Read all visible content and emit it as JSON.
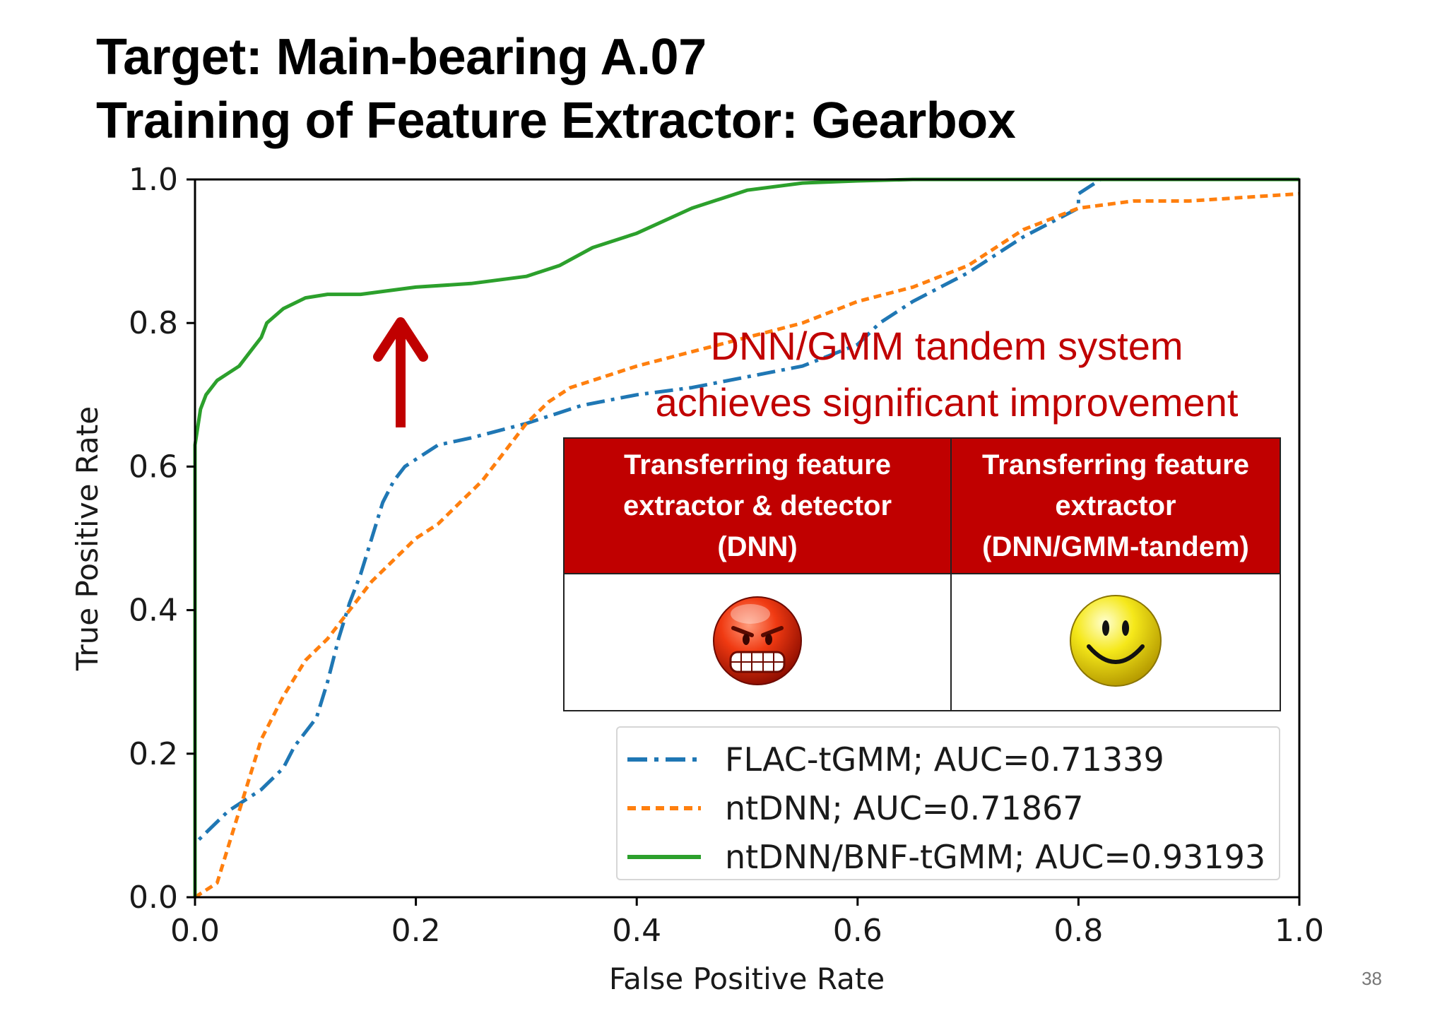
{
  "slide": {
    "title_line1": "Target: Main-bearing A.07",
    "title_line2": "Training of Feature Extractor: Gearbox",
    "callout_line1": "DNN/GMM tandem system",
    "callout_line2": "achieves significant improvement",
    "arrow_color": "#c00000",
    "page_number": "38"
  },
  "comparison_table": {
    "header_color": "#c00000",
    "columns": [
      {
        "heading_lines": [
          "Transferring feature",
          "extractor & detector",
          "(DNN)"
        ],
        "face_icon": "angry-face-icon"
      },
      {
        "heading_lines": [
          "Transferring feature",
          "extractor",
          "(DNN/GMM-tandem)"
        ],
        "face_icon": "smiley-face-icon"
      }
    ]
  },
  "chart_data": {
    "type": "line",
    "xlabel": "False Positive Rate",
    "ylabel": "True Positive Rate",
    "xlim": [
      0,
      1
    ],
    "ylim": [
      0,
      1
    ],
    "xticks": [
      "0.0",
      "0.2",
      "0.4",
      "0.6",
      "0.8",
      "1.0"
    ],
    "yticks": [
      "0.0",
      "0.2",
      "0.4",
      "0.6",
      "0.8",
      "1.0"
    ],
    "grid": false,
    "legend_position": "lower-right",
    "series": [
      {
        "name": "FLAC-tGMM; AUC=0.71339",
        "color": "#1f77b4",
        "linestyle": "dashdot",
        "x": [
          0,
          0,
          0.03,
          0.06,
          0.08,
          0.09,
          0.11,
          0.12,
          0.13,
          0.14,
          0.15,
          0.16,
          0.17,
          0.18,
          0.19,
          0.2,
          0.22,
          0.25,
          0.3,
          0.35,
          0.4,
          0.45,
          0.5,
          0.55,
          0.6,
          0.62,
          0.65,
          0.7,
          0.75,
          0.8,
          0.8,
          0.81,
          0.82,
          1.0
        ],
        "y": [
          0,
          0.075,
          0.12,
          0.15,
          0.18,
          0.21,
          0.25,
          0.3,
          0.36,
          0.41,
          0.45,
          0.5,
          0.55,
          0.58,
          0.6,
          0.61,
          0.63,
          0.64,
          0.66,
          0.685,
          0.7,
          0.71,
          0.725,
          0.74,
          0.77,
          0.8,
          0.83,
          0.87,
          0.92,
          0.96,
          0.98,
          0.99,
          1.0,
          1.0
        ]
      },
      {
        "name": "ntDNN; AUC=0.71867",
        "color": "#ff7f0e",
        "linestyle": "dotted",
        "x": [
          0,
          0.02,
          0.04,
          0.06,
          0.08,
          0.1,
          0.12,
          0.14,
          0.16,
          0.18,
          0.2,
          0.22,
          0.24,
          0.26,
          0.28,
          0.3,
          0.32,
          0.34,
          0.36,
          0.4,
          0.45,
          0.5,
          0.55,
          0.6,
          0.65,
          0.7,
          0.75,
          0.8,
          0.85,
          0.9,
          0.95,
          1.0
        ],
        "y": [
          0,
          0.02,
          0.12,
          0.22,
          0.28,
          0.33,
          0.36,
          0.4,
          0.44,
          0.47,
          0.5,
          0.52,
          0.55,
          0.58,
          0.62,
          0.66,
          0.69,
          0.71,
          0.72,
          0.74,
          0.76,
          0.78,
          0.8,
          0.83,
          0.85,
          0.88,
          0.93,
          0.96,
          0.97,
          0.97,
          0.975,
          0.98
        ]
      },
      {
        "name": "ntDNN/BNF-tGMM; AUC=0.93193",
        "color": "#2ca02c",
        "linestyle": "solid",
        "x": [
          0,
          0,
          0.005,
          0.01,
          0.02,
          0.03,
          0.04,
          0.05,
          0.06,
          0.065,
          0.08,
          0.1,
          0.12,
          0.15,
          0.2,
          0.25,
          0.3,
          0.33,
          0.36,
          0.4,
          0.45,
          0.5,
          0.55,
          0.6,
          0.65,
          1.0
        ],
        "y": [
          0,
          0.63,
          0.68,
          0.7,
          0.72,
          0.73,
          0.74,
          0.76,
          0.78,
          0.8,
          0.82,
          0.835,
          0.84,
          0.84,
          0.85,
          0.855,
          0.865,
          0.88,
          0.905,
          0.925,
          0.96,
          0.985,
          0.995,
          0.998,
          1.0,
          1.0
        ]
      }
    ]
  }
}
